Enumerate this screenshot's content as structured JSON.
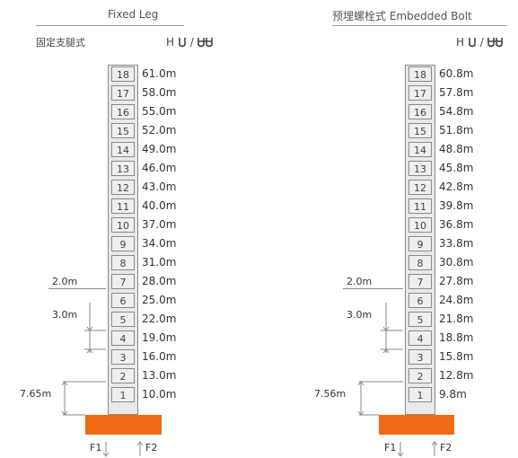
{
  "panels": [
    {
      "id": "left",
      "title": "Fixed Leg",
      "subtitle": "固定支腿式",
      "height_label": "H",
      "icon_sep": "/",
      "sections": [
        {
          "num": "18",
          "h": "61.0m"
        },
        {
          "num": "17",
          "h": "58.0m"
        },
        {
          "num": "16",
          "h": "55.0m"
        },
        {
          "num": "15",
          "h": "52.0m"
        },
        {
          "num": "14",
          "h": "49.0m"
        },
        {
          "num": "13",
          "h": "46.0m"
        },
        {
          "num": "12",
          "h": "43.0m"
        },
        {
          "num": "11",
          "h": "40.0m"
        },
        {
          "num": "10",
          "h": "37.0m"
        },
        {
          "num": "9",
          "h": "34.0m"
        },
        {
          "num": "8",
          "h": "31.0m"
        },
        {
          "num": "7",
          "h": "28.0m"
        },
        {
          "num": "6",
          "h": "25.0m"
        },
        {
          "num": "5",
          "h": "22.0m"
        },
        {
          "num": "4",
          "h": "19.0m"
        },
        {
          "num": "3",
          "h": "16.0m"
        },
        {
          "num": "2",
          "h": "13.0m"
        },
        {
          "num": "1",
          "h": "10.0m"
        }
      ],
      "dim_top": "2.0m",
      "dim_section": "3.0m",
      "dim_base": "7.65m",
      "force_1": "F1",
      "force_2": "F2"
    },
    {
      "id": "right",
      "title": "预埋螺栓式 Embedded Bolt",
      "subtitle": "",
      "height_label": "H",
      "icon_sep": "/",
      "sections": [
        {
          "num": "18",
          "h": "60.8m"
        },
        {
          "num": "17",
          "h": "57.8m"
        },
        {
          "num": "16",
          "h": "54.8m"
        },
        {
          "num": "15",
          "h": "51.8m"
        },
        {
          "num": "14",
          "h": "48.8m"
        },
        {
          "num": "13",
          "h": "45.8m"
        },
        {
          "num": "12",
          "h": "42.8m"
        },
        {
          "num": "11",
          "h": "39.8m"
        },
        {
          "num": "10",
          "h": "36.8m"
        },
        {
          "num": "9",
          "h": "33.8m"
        },
        {
          "num": "8",
          "h": "30.8m"
        },
        {
          "num": "7",
          "h": "27.8m"
        },
        {
          "num": "6",
          "h": "24.8m"
        },
        {
          "num": "5",
          "h": "21.8m"
        },
        {
          "num": "4",
          "h": "18.8m"
        },
        {
          "num": "3",
          "h": "15.8m"
        },
        {
          "num": "2",
          "h": "12.8m"
        },
        {
          "num": "1",
          "h": "9.8m"
        }
      ],
      "dim_top": "2.0m",
      "dim_section": "3.0m",
      "dim_base": "7.56m",
      "force_1": "F1",
      "force_2": "F2"
    }
  ],
  "colors": {
    "base": "#ee6a14",
    "mast": "#e8e8e8",
    "line": "#8a8a8a"
  },
  "icons": {
    "tower_icon_1": "tower-crane-icon",
    "tower_icon_2": "tower-crane-double-icon"
  }
}
